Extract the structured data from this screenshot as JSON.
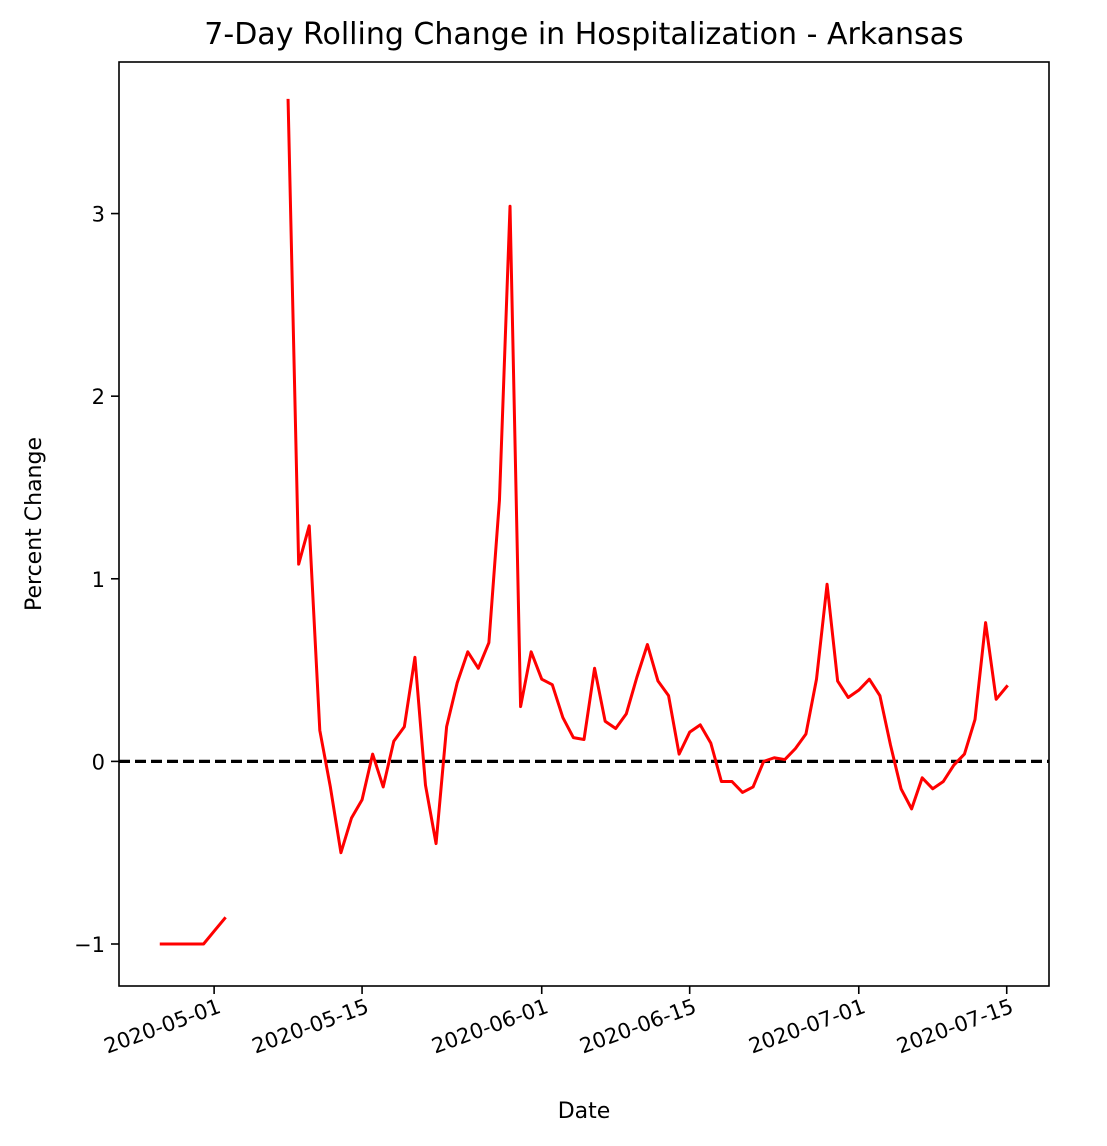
{
  "chart_data": {
    "type": "line",
    "title": "7-Day Rolling Change in Hospitalization - Arkansas",
    "xlabel": "Date",
    "ylabel": "Percent Change",
    "x_range": [
      "2020-04-22",
      "2020-07-19"
    ],
    "ylim": [
      -1.23,
      3.83
    ],
    "grid": false,
    "x_ticks": [
      "2020-05-01",
      "2020-05-15",
      "2020-06-01",
      "2020-06-15",
      "2020-07-01",
      "2020-07-15"
    ],
    "y_ticks": [
      {
        "value": -1,
        "label": "−1"
      },
      {
        "value": 0,
        "label": "0"
      },
      {
        "value": 1,
        "label": "1"
      },
      {
        "value": 2,
        "label": "2"
      },
      {
        "value": 3,
        "label": "3"
      }
    ],
    "reference_line": {
      "y": 0,
      "style": "dashed",
      "color": "#000000"
    },
    "series": [
      {
        "color": "#ff0000",
        "segments": [
          [
            {
              "x": "2020-04-26",
              "y": -1.0
            },
            {
              "x": "2020-04-27",
              "y": -1.0
            },
            {
              "x": "2020-04-28",
              "y": -1.0
            },
            {
              "x": "2020-04-29",
              "y": -1.0
            },
            {
              "x": "2020-04-30",
              "y": -1.0
            },
            {
              "x": "2020-05-01",
              "y": -0.93
            },
            {
              "x": "2020-05-02",
              "y": -0.86
            }
          ],
          [
            {
              "x": "2020-05-08",
              "y": 3.62
            },
            {
              "x": "2020-05-09",
              "y": 1.08
            },
            {
              "x": "2020-05-10",
              "y": 1.29
            },
            {
              "x": "2020-05-11",
              "y": 0.17
            },
            {
              "x": "2020-05-12",
              "y": -0.14
            },
            {
              "x": "2020-05-13",
              "y": -0.5
            },
            {
              "x": "2020-05-14",
              "y": -0.31
            },
            {
              "x": "2020-05-15",
              "y": -0.21
            },
            {
              "x": "2020-05-16",
              "y": 0.04
            },
            {
              "x": "2020-05-17",
              "y": -0.14
            },
            {
              "x": "2020-05-18",
              "y": 0.11
            },
            {
              "x": "2020-05-19",
              "y": 0.19
            },
            {
              "x": "2020-05-20",
              "y": 0.57
            },
            {
              "x": "2020-05-21",
              "y": -0.13
            },
            {
              "x": "2020-05-22",
              "y": -0.45
            },
            {
              "x": "2020-05-23",
              "y": 0.19
            },
            {
              "x": "2020-05-24",
              "y": 0.43
            },
            {
              "x": "2020-05-25",
              "y": 0.6
            },
            {
              "x": "2020-05-26",
              "y": 0.51
            },
            {
              "x": "2020-05-27",
              "y": 0.65
            },
            {
              "x": "2020-05-28",
              "y": 1.43
            },
            {
              "x": "2020-05-29",
              "y": 3.04
            },
            {
              "x": "2020-05-30",
              "y": 0.3
            },
            {
              "x": "2020-05-31",
              "y": 0.6
            },
            {
              "x": "2020-06-01",
              "y": 0.45
            },
            {
              "x": "2020-06-02",
              "y": 0.42
            },
            {
              "x": "2020-06-03",
              "y": 0.24
            },
            {
              "x": "2020-06-04",
              "y": 0.13
            },
            {
              "x": "2020-06-05",
              "y": 0.12
            },
            {
              "x": "2020-06-06",
              "y": 0.51
            },
            {
              "x": "2020-06-07",
              "y": 0.22
            },
            {
              "x": "2020-06-08",
              "y": 0.18
            },
            {
              "x": "2020-06-09",
              "y": 0.26
            },
            {
              "x": "2020-06-10",
              "y": 0.46
            },
            {
              "x": "2020-06-11",
              "y": 0.64
            },
            {
              "x": "2020-06-12",
              "y": 0.44
            },
            {
              "x": "2020-06-13",
              "y": 0.36
            },
            {
              "x": "2020-06-14",
              "y": 0.04
            },
            {
              "x": "2020-06-15",
              "y": 0.16
            },
            {
              "x": "2020-06-16",
              "y": 0.2
            },
            {
              "x": "2020-06-17",
              "y": 0.1
            },
            {
              "x": "2020-06-18",
              "y": -0.11
            },
            {
              "x": "2020-06-19",
              "y": -0.11
            },
            {
              "x": "2020-06-20",
              "y": -0.17
            },
            {
              "x": "2020-06-21",
              "y": -0.14
            },
            {
              "x": "2020-06-22",
              "y": 0.0
            },
            {
              "x": "2020-06-23",
              "y": 0.02
            },
            {
              "x": "2020-06-24",
              "y": 0.01
            },
            {
              "x": "2020-06-25",
              "y": 0.07
            },
            {
              "x": "2020-06-26",
              "y": 0.15
            },
            {
              "x": "2020-06-27",
              "y": 0.45
            },
            {
              "x": "2020-06-28",
              "y": 0.97
            },
            {
              "x": "2020-06-29",
              "y": 0.44
            },
            {
              "x": "2020-06-30",
              "y": 0.35
            },
            {
              "x": "2020-07-01",
              "y": 0.39
            },
            {
              "x": "2020-07-02",
              "y": 0.45
            },
            {
              "x": "2020-07-03",
              "y": 0.36
            },
            {
              "x": "2020-07-04",
              "y": 0.09
            },
            {
              "x": "2020-07-05",
              "y": -0.15
            },
            {
              "x": "2020-07-06",
              "y": -0.26
            },
            {
              "x": "2020-07-07",
              "y": -0.09
            },
            {
              "x": "2020-07-08",
              "y": -0.15
            },
            {
              "x": "2020-07-09",
              "y": -0.11
            },
            {
              "x": "2020-07-10",
              "y": -0.02
            },
            {
              "x": "2020-07-11",
              "y": 0.04
            },
            {
              "x": "2020-07-12",
              "y": 0.23
            },
            {
              "x": "2020-07-13",
              "y": 0.76
            },
            {
              "x": "2020-07-14",
              "y": 0.34
            },
            {
              "x": "2020-07-15",
              "y": 0.41
            }
          ]
        ]
      }
    ]
  }
}
